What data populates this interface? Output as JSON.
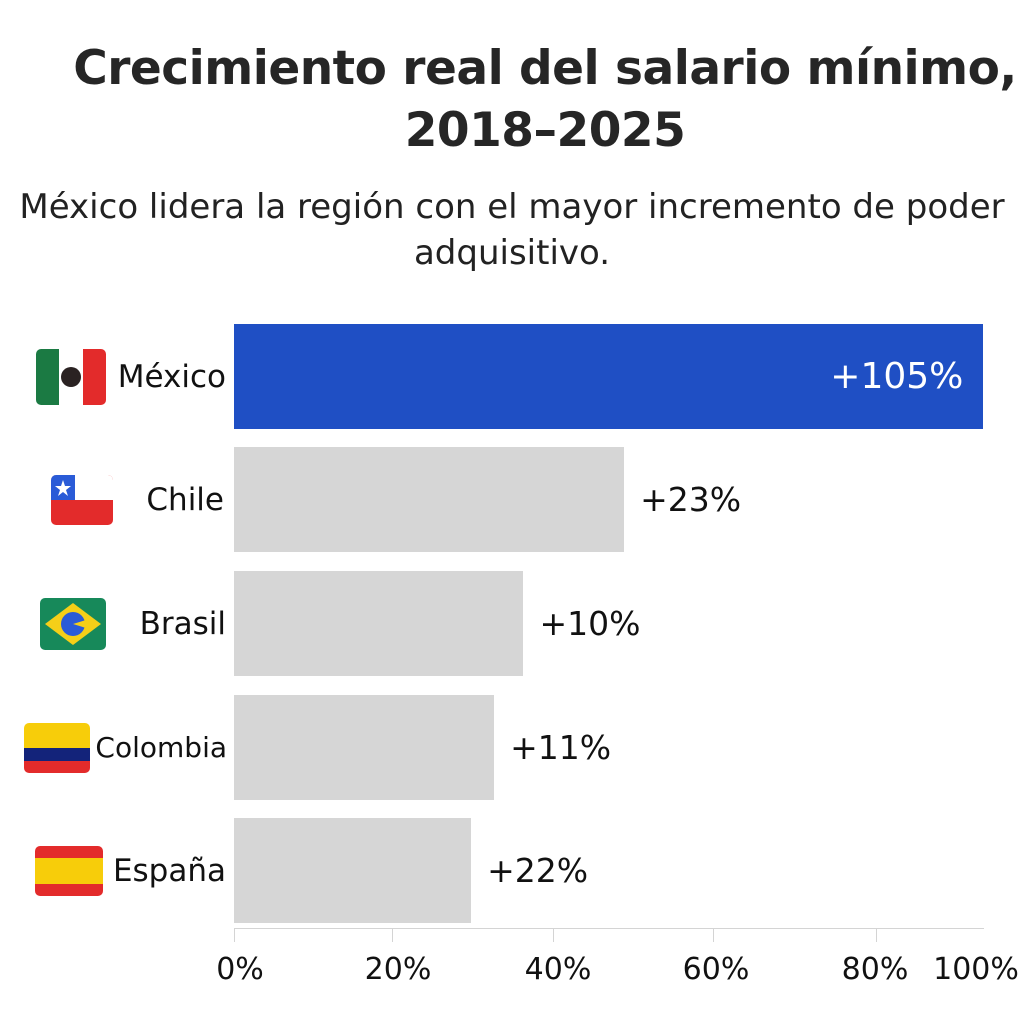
{
  "chart_data": {
    "type": "bar",
    "orientation": "horizontal",
    "title": "Crecimiento real del salario mínimo, 2018–2025",
    "subtitle": "México lidera la región con el mayor incremento de poder adquisitivo.",
    "categories": [
      "México",
      "Chile",
      "Brasil",
      "Colombia",
      "España"
    ],
    "flags": [
      "mexico-flag-icon",
      "chile-flag-icon",
      "brazil-flag-icon",
      "colombia-flag-icon",
      "spain-flag-icon"
    ],
    "data_labels": [
      "+105%",
      "+23%",
      "+10%",
      "+11%",
      "+22%"
    ],
    "values": [
      105,
      23,
      10,
      11,
      22
    ],
    "bar_extent_percent": [
      94.5,
      49.2,
      36.5,
      32.8,
      29.9
    ],
    "xticks": [
      "0%",
      "20%",
      "40%",
      "60%",
      "80%",
      "100%"
    ],
    "xlim": [
      0,
      100
    ],
    "grid": false,
    "colors": {
      "highlight": "#1f4fc4",
      "default": "#d6d6d6",
      "highlight_label": "#ffffff"
    }
  }
}
